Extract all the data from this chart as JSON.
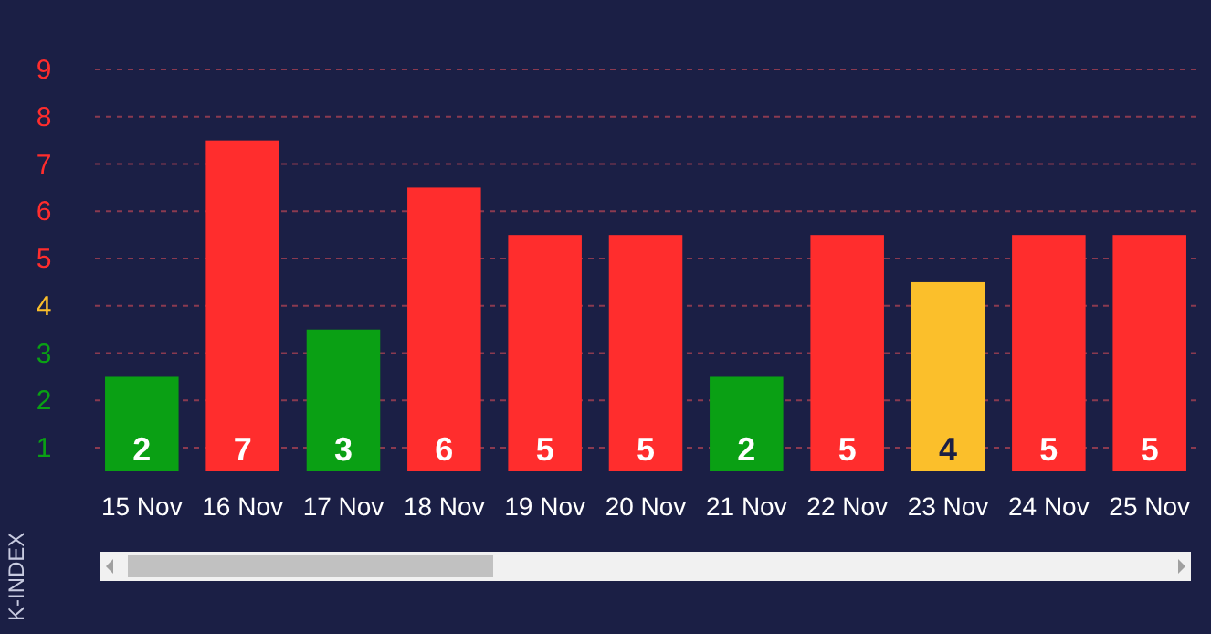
{
  "chart_data": {
    "type": "bar",
    "ylabel": "K-INDEX",
    "categories": [
      "15 Nov",
      "16 Nov",
      "17 Nov",
      "18 Nov",
      "19 Nov",
      "20 Nov",
      "21 Nov",
      "22 Nov",
      "23 Nov",
      "24 Nov",
      "25 Nov"
    ],
    "values": [
      2,
      7,
      3,
      6,
      5,
      5,
      2,
      5,
      4,
      5,
      5
    ],
    "colors": [
      "#0aa014",
      "#ff2d2d",
      "#0aa014",
      "#ff2d2d",
      "#ff2d2d",
      "#ff2d2d",
      "#0aa014",
      "#ff2d2d",
      "#fbbf2b",
      "#ff2d2d",
      "#ff2d2d"
    ],
    "ylim": [
      0,
      8.5
    ],
    "yticks": [
      {
        "value": 0.5,
        "label": "1"
      },
      {
        "value": 1.5,
        "label": "2"
      },
      {
        "value": 2.5,
        "label": "3"
      },
      {
        "value": 3.5,
        "label": "4"
      },
      {
        "value": 4.5,
        "label": "5"
      },
      {
        "value": 5.5,
        "label": "6"
      },
      {
        "value": 6.5,
        "label": "7"
      },
      {
        "value": 7.5,
        "label": "8"
      },
      {
        "value": 8.5,
        "label": "9"
      }
    ],
    "grid": "y",
    "data_labels": true
  }
}
